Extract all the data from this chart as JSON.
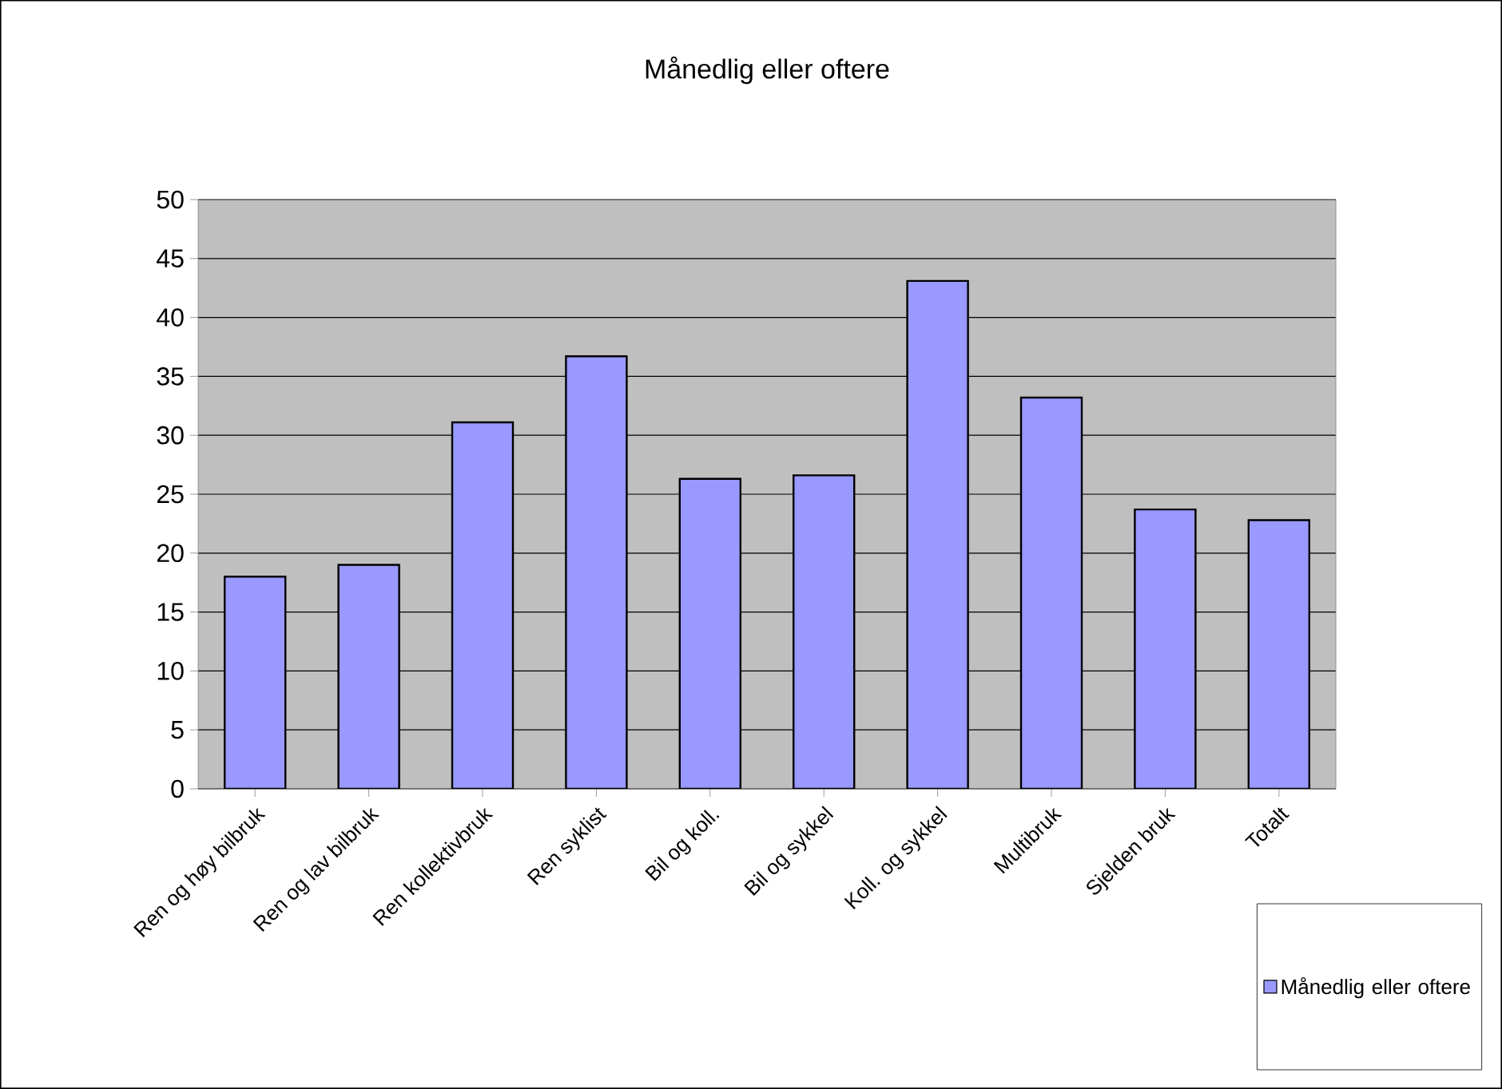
{
  "chart_data": {
    "type": "bar",
    "title": "Månedlig eller oftere",
    "categories": [
      "Ren og høy bilbruk",
      "Ren og lav bilbruk",
      "Ren kollektivbruk",
      "Ren syklist",
      "Bil og koll.",
      "Bil og sykkel",
      "Koll. og sykkel",
      "Multibruk",
      "Sjelden bruk",
      "Totalt"
    ],
    "series": [
      {
        "name": "Månedlig eller oftere",
        "color": "#9999ff",
        "values": [
          18.0,
          19.0,
          31.1,
          36.7,
          26.3,
          26.6,
          43.1,
          33.2,
          23.7,
          22.8
        ]
      }
    ],
    "ylim": [
      0,
      50
    ],
    "yticks": [
      0,
      5,
      10,
      15,
      20,
      25,
      30,
      35,
      40,
      45,
      50
    ],
    "grid": "y",
    "legend": "bottom right"
  }
}
